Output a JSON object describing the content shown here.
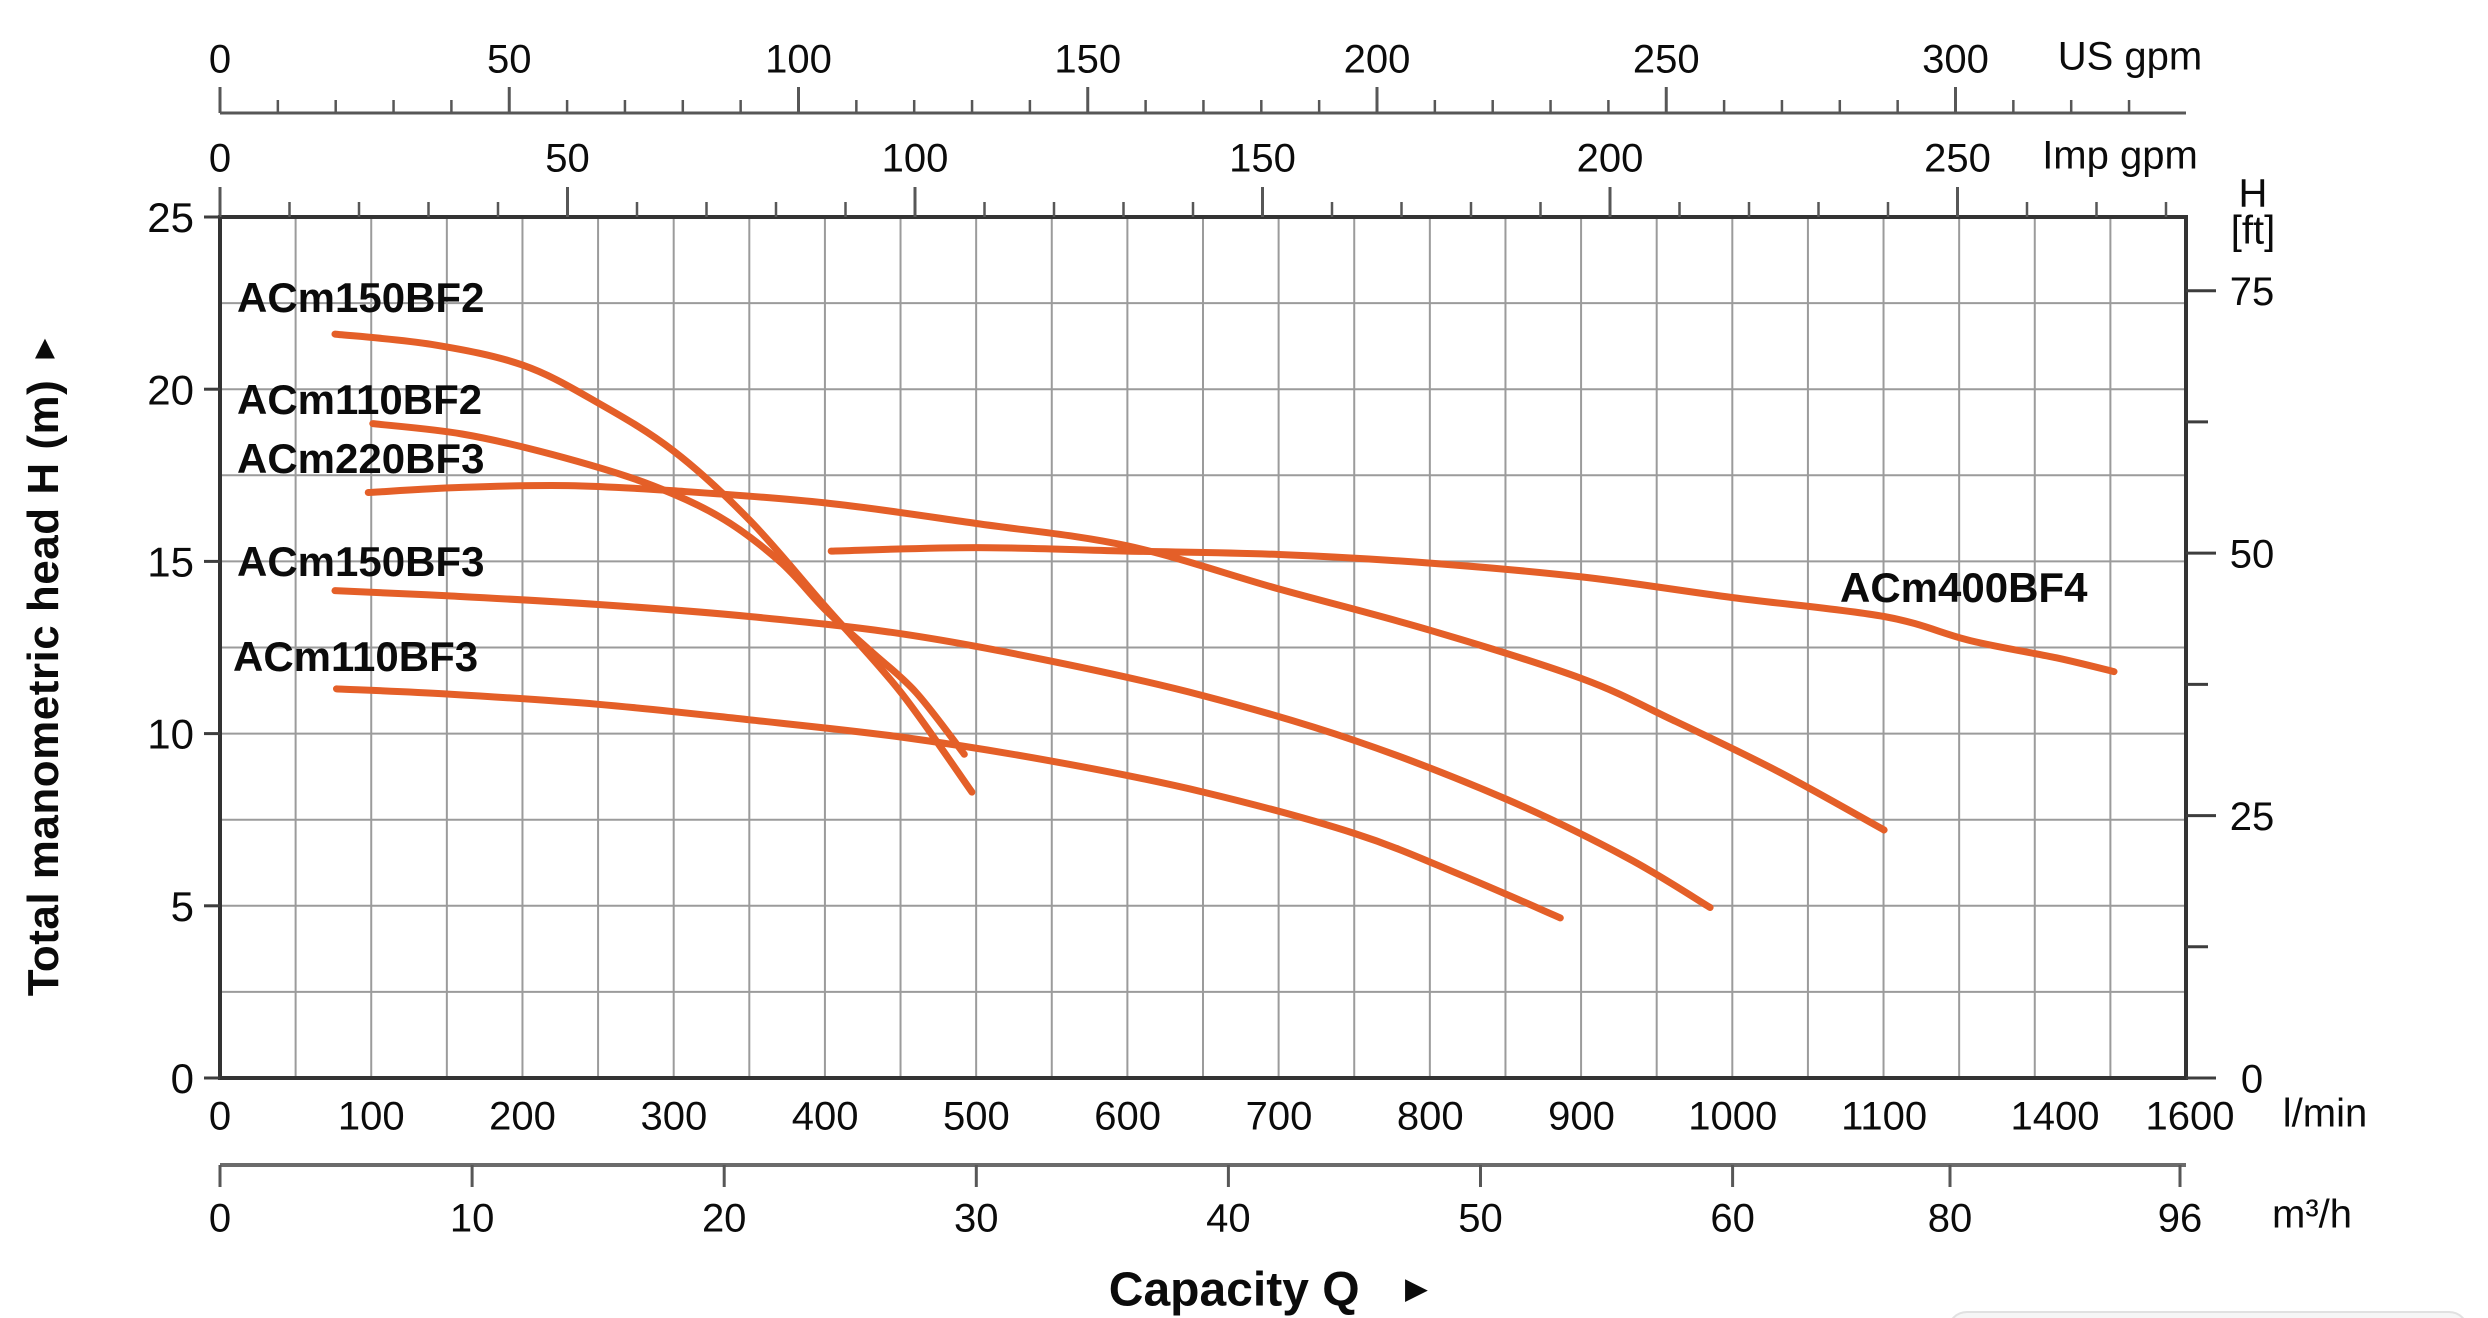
{
  "labels": {
    "us_gpm_unit": "US gpm",
    "imp_gpm_unit": "Imp gpm",
    "h_header": "H",
    "ft_header": "[ft]",
    "lmin_unit": "l/min",
    "m3h_unit": "m³/h",
    "y_axis_title": "Total manometric head H (m)",
    "y_axis_arrow": "▲",
    "x_axis_label": "Capacity Q",
    "x_axis_arrow": "►"
  },
  "colors": {
    "curve": "#E45F28",
    "grid": "#9B9B9B",
    "border": "#333333",
    "axis": "#575757",
    "tick": "#3d3d3d",
    "text": "#0B0B0B",
    "overlay_fill": "#F6F6F6",
    "overlay_border": "#E1E1E1"
  },
  "chart_data": {
    "type": "line",
    "grid": "on",
    "x_label": {
      "text": "Capacity Q",
      "arrow": "►"
    },
    "x_axis_top": [
      {
        "id": "us_gpm",
        "unit": "US gpm",
        "labels": [
          0,
          50,
          100,
          150,
          200,
          250,
          300
        ],
        "minor_tick_step": 10
      },
      {
        "id": "imp_gpm",
        "unit": "Imp gpm",
        "labels": [
          0,
          50,
          100,
          150,
          200,
          250
        ],
        "minor_tick_step": 10
      }
    ],
    "x_axis_bottom": [
      {
        "id": "lmin",
        "unit": "l/min",
        "labels": [
          0,
          100,
          200,
          300,
          400,
          500,
          600,
          700,
          800,
          900,
          1000,
          1100,
          1400,
          1600
        ]
      },
      {
        "id": "m3h",
        "unit": "m³/h",
        "labels": [
          0,
          10,
          20,
          30,
          40,
          50,
          60,
          80,
          96
        ]
      }
    ],
    "y_axis_left": {
      "title": "Total manometric head H (m)",
      "arrow": "▲",
      "labels": [
        0,
        5,
        10,
        15,
        20,
        25
      ],
      "range": [
        0,
        25
      ],
      "grid_step": 2.5
    },
    "y_axis_right": {
      "header_line1": "H",
      "header_line2": "[ft]",
      "labels": [
        0,
        25,
        50,
        75
      ],
      "minor_tick_step": 12.5
    },
    "series": [
      {
        "name": "ACm150BF2",
        "color": "#E45F28",
        "points": [
          [
            76,
            21.6
          ],
          [
            140,
            21.3
          ],
          [
            200,
            20.7
          ],
          [
            250,
            19.6
          ],
          [
            300,
            18.2
          ],
          [
            350,
            16.2
          ],
          [
            400,
            13.7
          ],
          [
            450,
            11.2
          ],
          [
            497,
            8.3
          ]
        ]
      },
      {
        "name": "ACm110BF2",
        "color": "#E45F28",
        "points": [
          [
            101,
            19.0
          ],
          [
            160,
            18.7
          ],
          [
            220,
            18.1
          ],
          [
            280,
            17.3
          ],
          [
            330,
            16.3
          ],
          [
            370,
            15.0
          ],
          [
            400,
            13.6
          ],
          [
            430,
            12.4
          ],
          [
            460,
            11.2
          ],
          [
            492,
            9.4
          ]
        ]
      },
      {
        "name": "ACm220BF3",
        "color": "#E45F28",
        "points": [
          [
            98,
            17.0
          ],
          [
            160,
            17.15
          ],
          [
            230,
            17.2
          ],
          [
            300,
            17.05
          ],
          [
            400,
            16.7
          ],
          [
            500,
            16.1
          ],
          [
            600,
            15.45
          ],
          [
            700,
            14.2
          ],
          [
            800,
            13.0
          ],
          [
            900,
            11.6
          ],
          [
            960,
            10.4
          ],
          [
            1030,
            8.9
          ],
          [
            1100,
            7.2
          ]
        ]
      },
      {
        "name": "ACm150BF3",
        "color": "#E45F28",
        "points": [
          [
            76,
            14.15
          ],
          [
            150,
            14.0
          ],
          [
            250,
            13.75
          ],
          [
            350,
            13.4
          ],
          [
            450,
            12.9
          ],
          [
            550,
            12.1
          ],
          [
            650,
            11.1
          ],
          [
            750,
            9.8
          ],
          [
            850,
            8.1
          ],
          [
            930,
            6.4
          ],
          [
            985,
            4.95
          ]
        ]
      },
      {
        "name": "ACm110BF3",
        "color": "#E45F28",
        "points": [
          [
            77,
            11.3
          ],
          [
            150,
            11.15
          ],
          [
            250,
            10.85
          ],
          [
            350,
            10.4
          ],
          [
            450,
            9.9
          ],
          [
            550,
            9.2
          ],
          [
            650,
            8.3
          ],
          [
            750,
            7.1
          ],
          [
            820,
            5.9
          ],
          [
            886,
            4.65
          ]
        ]
      },
      {
        "name": "ACm400BF4",
        "color": "#E45F28",
        "points": [
          [
            404,
            15.3
          ],
          [
            500,
            15.4
          ],
          [
            600,
            15.3
          ],
          [
            700,
            15.2
          ],
          [
            800,
            14.95
          ],
          [
            900,
            14.55
          ],
          [
            1000,
            13.95
          ],
          [
            1100,
            13.4
          ],
          [
            1250,
            12.7
          ],
          [
            1400,
            12.2
          ],
          [
            1500,
            11.8
          ]
        ]
      }
    ]
  }
}
